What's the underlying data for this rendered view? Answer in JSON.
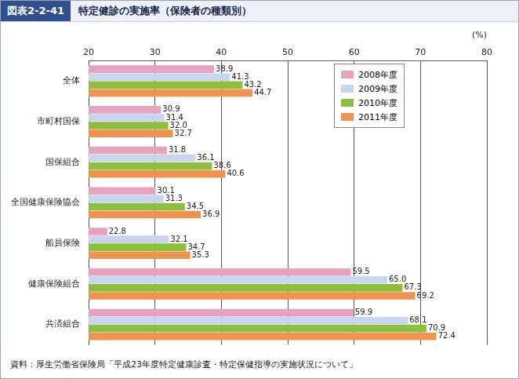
{
  "chart_data": {
    "type": "bar",
    "orientation": "horizontal",
    "figure_label": "図表2-2-41",
    "title": "特定健診の実施率（保険者の種類別）",
    "source": "資料：厚生労働省保険局「平成23年度特定健康診査・特定保健指導の実施状況について」",
    "x_label": "(%)",
    "categories": [
      "全体",
      "市町村国保",
      "国保組合",
      "全国健康保険協会",
      "船員保険",
      "健康保険組合",
      "共済組合"
    ],
    "series": [
      {
        "name": "2008年度",
        "color": "#e6a3c0",
        "values": [
          38.9,
          30.9,
          31.8,
          30.1,
          22.8,
          59.5,
          59.9
        ]
      },
      {
        "name": "2009年度",
        "color": "#c9d5ef",
        "values": [
          41.3,
          31.4,
          36.1,
          31.3,
          32.1,
          65.0,
          68.1
        ],
        "value_labels": [
          "41.3",
          "31.4",
          "36.1",
          "31.3",
          "32.1",
          "65.0",
          "68.1"
        ]
      },
      {
        "name": "2010年度",
        "color": "#8dbf3c",
        "values": [
          43.2,
          32.0,
          38.6,
          34.5,
          34.7,
          67.3,
          70.9
        ],
        "value_labels": [
          "43.2",
          "32.0",
          "38.6",
          "34.5",
          "34.7",
          "67.3",
          "70.9"
        ]
      },
      {
        "name": "2011年度",
        "color": "#ef9450",
        "values": [
          44.7,
          32.7,
          40.6,
          36.9,
          35.3,
          69.2,
          72.4
        ]
      }
    ],
    "xlim": [
      20,
      80
    ],
    "xticks": [
      20,
      30,
      40,
      50,
      60,
      70,
      80
    ],
    "grid": true,
    "legend": "top-right",
    "data_labels": true
  }
}
